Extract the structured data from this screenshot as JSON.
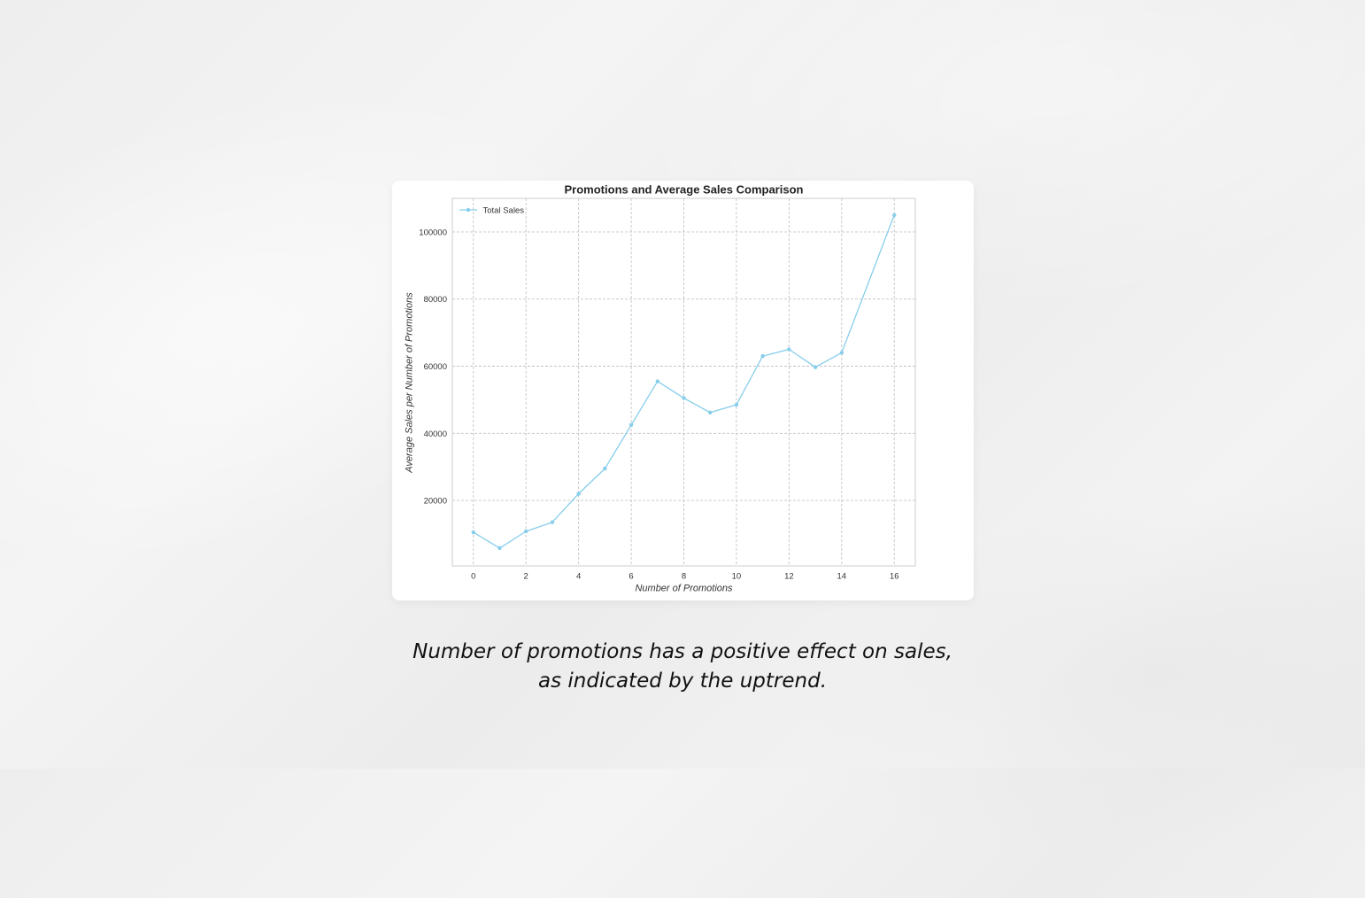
{
  "chart_data": {
    "type": "line",
    "title": "Promotions and Average Sales Comparison",
    "xlabel": "Number of Promotions",
    "ylabel": "Average Sales per Number of Promotions",
    "xlim": [
      -0.8,
      16.8
    ],
    "ylim": [
      500,
      110000
    ],
    "x_ticks": [
      0,
      2,
      4,
      6,
      8,
      10,
      12,
      14,
      16
    ],
    "y_ticks": [
      20000,
      40000,
      60000,
      80000,
      100000
    ],
    "grid": true,
    "legend_position": "top-left",
    "series": [
      {
        "name": "Total Sales",
        "color": "#87ceeb",
        "x": [
          0,
          1,
          2,
          3,
          4,
          5,
          6,
          7,
          8,
          9,
          10,
          11,
          12,
          13,
          14,
          16
        ],
        "y": [
          10500,
          5800,
          10800,
          13500,
          22000,
          29500,
          42500,
          55500,
          50500,
          46200,
          48500,
          63000,
          65000,
          59700,
          64000,
          105000
        ]
      }
    ]
  },
  "caption": {
    "line1": "Number of promotions has a positive effect on sales,",
    "line2": "as indicated by the uptrend."
  }
}
